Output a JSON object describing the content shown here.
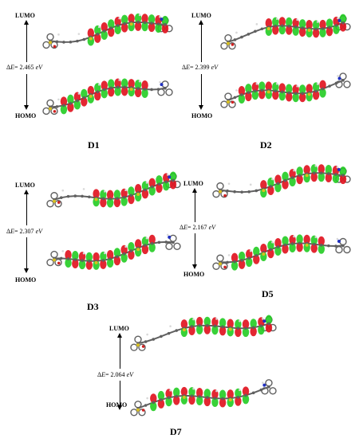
{
  "panels": [
    {
      "id": "D1",
      "label": "D1",
      "lumo": "LUMO",
      "homo": "HOMO",
      "gap_prefix": "E",
      "gap_value": "= 2.465",
      "gap_unit": "eV"
    },
    {
      "id": "D2",
      "label": "D2",
      "lumo": "LUMO",
      "homo": "HOMO",
      "gap_prefix": "E",
      "gap_value": "= 2.399",
      "gap_unit": "eV"
    },
    {
      "id": "D3",
      "label": "D3",
      "lumo": "LUMO",
      "homo": "HOMO",
      "gap_prefix": "E",
      "gap_value": "= 2.307",
      "gap_unit": "eV"
    },
    {
      "id": "D5",
      "label": "D5",
      "lumo": "LUMO",
      "homo": "HOMO",
      "gap_prefix": "E",
      "gap_value": "= 2.167",
      "gap_unit": "eV"
    },
    {
      "id": "D7",
      "label": "D7",
      "lumo": "LUMO",
      "homo": "HOMO",
      "gap_prefix": "E",
      "gap_value": "= 2.064",
      "gap_unit": "eV"
    }
  ],
  "colors": {
    "positive_lobe": "#e0101c",
    "negative_lobe": "#22cc22",
    "carbon": "#606060",
    "hydrogen": "#d8d8d8",
    "sulfur": "#d8c020",
    "nitrogen": "#2030c0",
    "oxygen": "#d02020"
  }
}
